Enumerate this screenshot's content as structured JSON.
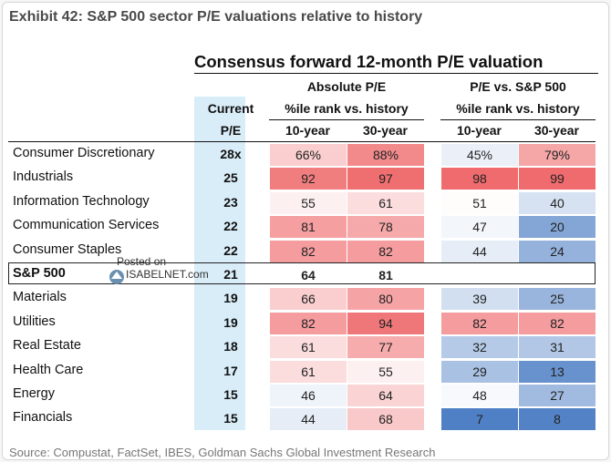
{
  "exhibit_title": "Exhibit 42: S&P 500 sector P/E valuations relative to history",
  "source": "Source: Compustat, FactSet, IBES, Goldman Sachs Global Investment Research",
  "watermark": {
    "line1": "Posted on",
    "line2": "ISABELNET.com"
  },
  "colors": {
    "high_red": "#ef6b6d",
    "low_blue": "#4f80c5",
    "neutral": "#ffffff",
    "current_band": "#d9edf8"
  },
  "chart_data": {
    "type": "table",
    "title": "Consensus forward 12-month P/E valuation",
    "headers": {
      "current_line1": "Current",
      "current_line2": "P/E",
      "group1": "Absolute P/E",
      "group1_sub": "%ile rank vs. history",
      "group2": "P/E vs. S&P 500",
      "group2_sub": "%ile rank vs. history",
      "col_10y": "10-year",
      "col_30y": "30-year"
    },
    "rows": [
      {
        "sector": "Consumer Discretionary",
        "pe": "28x",
        "abs10": "66%",
        "abs30": "88%",
        "rel10": "45%",
        "rel30": "79%"
      },
      {
        "sector": "Industrials",
        "pe": "25",
        "abs10": "92",
        "abs30": "97",
        "rel10": "98",
        "rel30": "99"
      },
      {
        "sector": "Information Technology",
        "pe": "23",
        "abs10": "55",
        "abs30": "61",
        "rel10": "51",
        "rel30": "40"
      },
      {
        "sector": "Communication Services",
        "pe": "22",
        "abs10": "81",
        "abs30": "78",
        "rel10": "47",
        "rel30": "20"
      },
      {
        "sector": "Consumer Staples",
        "pe": "22",
        "abs10": "82",
        "abs30": "82",
        "rel10": "44",
        "rel30": "24"
      },
      {
        "sector": "S&P 500",
        "pe": "21",
        "abs10": "64",
        "abs30": "81",
        "rel10": "",
        "rel30": ""
      },
      {
        "sector": "Materials",
        "pe": "19",
        "abs10": "66",
        "abs30": "80",
        "rel10": "39",
        "rel30": "25"
      },
      {
        "sector": "Utilities",
        "pe": "19",
        "abs10": "82",
        "abs30": "94",
        "rel10": "82",
        "rel30": "82"
      },
      {
        "sector": "Real Estate",
        "pe": "18",
        "abs10": "61",
        "abs30": "77",
        "rel10": "32",
        "rel30": "31"
      },
      {
        "sector": "Health Care",
        "pe": "17",
        "abs10": "61",
        "abs30": "55",
        "rel10": "29",
        "rel30": "13"
      },
      {
        "sector": "Energy",
        "pe": "15",
        "abs10": "46",
        "abs30": "64",
        "rel10": "48",
        "rel30": "27"
      },
      {
        "sector": "Financials",
        "pe": "15",
        "abs10": "44",
        "abs30": "68",
        "rel10": "7",
        "rel30": "8"
      }
    ]
  }
}
